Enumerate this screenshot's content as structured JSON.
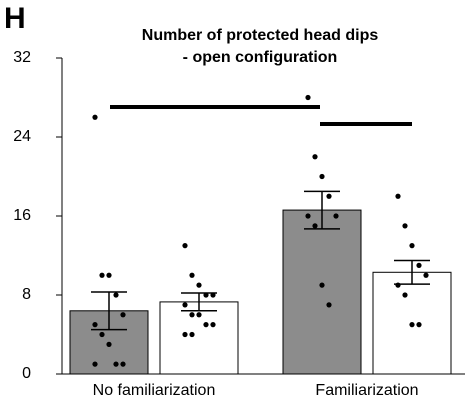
{
  "panel_label": "H",
  "chart_data": {
    "type": "bar",
    "title": [
      "Number of protected head dips",
      "- open configuration"
    ],
    "categories": [
      "No familiarization",
      "Familiarization"
    ],
    "series": [
      {
        "color": "#8c8c8c",
        "values": [
          6.4,
          16.6
        ],
        "errors": [
          1.9,
          1.9
        ],
        "points": [
          [
            26,
            10,
            10,
            8,
            6,
            5,
            4,
            3,
            1,
            1,
            1
          ],
          [
            28,
            22,
            20,
            18,
            16,
            16,
            15,
            9,
            7
          ]
        ]
      },
      {
        "color": "#ffffff",
        "values": [
          7.3,
          10.3
        ],
        "errors": [
          0.9,
          1.2
        ],
        "points": [
          [
            13,
            10,
            9,
            8,
            8,
            7,
            6,
            6,
            5,
            5,
            4,
            4
          ],
          [
            18,
            15,
            13,
            11,
            10,
            9,
            8,
            5,
            5
          ]
        ]
      }
    ],
    "ylim": [
      0,
      32
    ],
    "yticks": [
      0,
      8,
      16,
      24,
      32
    ],
    "grid": false
  }
}
